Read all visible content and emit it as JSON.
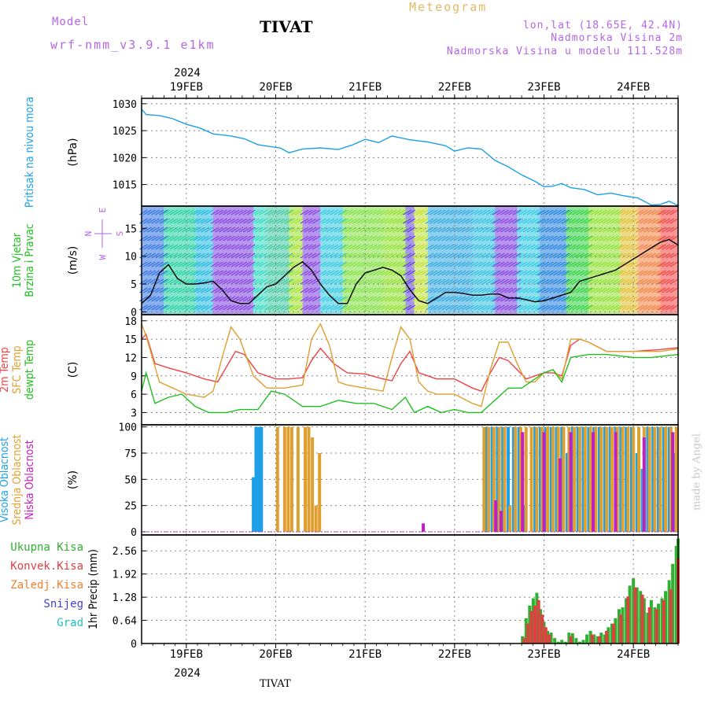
{
  "header": {
    "model_label": "Model",
    "model_name": "wrf-nmm_v3.9.1 e1km",
    "meteogram_label": "Meteogram",
    "station": "TIVAT",
    "coords": "lon,lat (18.65E, 42.4N)",
    "elevation": "Nadmorska Visina 2m",
    "model_elevation": "Nadmorska Visina u modelu 111.528m",
    "footer_station": "TIVAT",
    "watermark": "made by Angel"
  },
  "colors": {
    "pressure": "#1ea0e6",
    "temp2m": "#ee4444",
    "sfc": "#e0a030",
    "dewpt": "#20c020",
    "high_cloud": "#1ea0e6",
    "mid_cloud": "#e0a030",
    "low_cloud": "#c020c0",
    "total_precip": "#30b030",
    "conv_precip": "#e04040",
    "grid": "#888888"
  },
  "chart_data": {
    "type": "line",
    "x_axis": {
      "year": "2024",
      "dates": [
        "19FEB",
        "20FEB",
        "21FEB",
        "22FEB",
        "23FEB",
        "24FEB"
      ]
    },
    "panels": [
      {
        "id": "pressure",
        "type": "line",
        "ylabel_lines": [
          "Pritisak na nivou mora"
        ],
        "unit": "(hPa)",
        "yticks": [
          1015,
          1020,
          1025,
          1030
        ],
        "ylim": [
          1011,
          1031
        ],
        "series": [
          {
            "name": "Pritisak na nivou mora",
            "x": [
              18.5,
              18.55,
              18.7,
              18.85,
              19.0,
              19.15,
              19.3,
              19.5,
              19.65,
              19.8,
              19.95,
              20.05,
              20.15,
              20.3,
              20.5,
              20.7,
              20.85,
              21.0,
              21.15,
              21.3,
              21.5,
              21.7,
              21.9,
              22.0,
              22.15,
              22.3,
              22.45,
              22.6,
              22.75,
              22.9,
              23.0,
              23.1,
              23.2,
              23.3,
              23.45,
              23.6,
              23.75,
              23.9,
              24.05,
              24.2,
              24.3,
              24.4,
              24.5
            ],
            "values": [
              1029,
              1028,
              1027.8,
              1027.2,
              1026.2,
              1025.5,
              1024.4,
              1024,
              1023.5,
              1022.4,
              1022,
              1021.8,
              1020.9,
              1021.6,
              1021.8,
              1021.5,
              1022.3,
              1023.4,
              1022.8,
              1024,
              1023.3,
              1022.9,
              1022.2,
              1021.2,
              1021.8,
              1021.6,
              1019.5,
              1018.3,
              1016.8,
              1015.6,
              1014.6,
              1014.7,
              1015.2,
              1014.4,
              1014.1,
              1013.1,
              1013.4,
              1012.9,
              1012.5,
              1011.2,
              1011.3,
              1011.9,
              1011.1
            ]
          }
        ]
      },
      {
        "id": "wind",
        "type": "line",
        "ylabel_lines": [
          "10m Vjetar",
          "Brzina i Pravac"
        ],
        "unit": "(m/s)",
        "compass": {
          "n": "N",
          "s": "S",
          "w": "W",
          "e": "E"
        },
        "yticks": [
          0,
          5,
          10,
          15
        ],
        "ylim": [
          -0.5,
          19
        ],
        "series": [
          {
            "name": "Brzina",
            "x": [
              18.5,
              18.6,
              18.7,
              18.8,
              18.9,
              19.0,
              19.1,
              19.2,
              19.3,
              19.4,
              19.5,
              19.6,
              19.7,
              19.8,
              19.9,
              20.0,
              20.1,
              20.2,
              20.3,
              20.4,
              20.5,
              20.6,
              20.7,
              20.8,
              20.9,
              21.0,
              21.1,
              21.2,
              21.3,
              21.4,
              21.5,
              21.6,
              21.7,
              21.8,
              21.9,
              22.0,
              22.1,
              22.2,
              22.3,
              22.4,
              22.5,
              22.6,
              22.7,
              22.8,
              22.9,
              23.0,
              23.1,
              23.2,
              23.3,
              23.4,
              23.5,
              23.6,
              23.7,
              23.8,
              23.9,
              24.0,
              24.1,
              24.2,
              24.3,
              24.4,
              24.5
            ],
            "values": [
              1.5,
              3,
              7,
              8.5,
              6,
              5,
              5,
              5.2,
              5.5,
              4,
              2,
              1.5,
              1.5,
              3,
              4.5,
              5,
              6.5,
              8,
              9,
              7.5,
              5,
              3,
              1.5,
              1.5,
              5,
              7,
              7.5,
              8,
              7.5,
              6.5,
              4,
              2,
              1.5,
              2.5,
              3.5,
              3.5,
              3.3,
              3,
              3,
              3.2,
              3.2,
              2.5,
              2.5,
              2.2,
              1.8,
              2,
              2.5,
              3,
              3.5,
              5.5,
              6,
              6.5,
              7,
              7.5,
              8.5,
              9.5,
              10.5,
              11.5,
              12.5,
              13,
              12
            ]
          }
        ]
      },
      {
        "id": "temperature",
        "type": "line",
        "ylabel_lines": [
          "2m Temp",
          "SFC Temp",
          "dewpt Temp"
        ],
        "unit": "(C)",
        "yticks": [
          3,
          6,
          9,
          12,
          15,
          18
        ],
        "ylim": [
          1,
          19
        ],
        "series": [
          {
            "name": "2m Temp",
            "x": [
              18.5,
              18.55,
              18.65,
              18.8,
              19.0,
              19.2,
              19.35,
              19.45,
              19.55,
              19.65,
              19.8,
              20.0,
              20.15,
              20.3,
              20.4,
              20.5,
              20.65,
              20.8,
              21.0,
              21.2,
              21.3,
              21.4,
              21.5,
              21.6,
              21.8,
              22.0,
              22.2,
              22.3,
              22.4,
              22.5,
              22.6,
              22.7,
              22.8,
              22.9,
              23.0,
              23.1,
              23.2,
              23.3,
              23.4,
              23.5,
              23.7,
              24.0,
              24.3,
              24.5
            ],
            "values": [
              15,
              15.8,
              11,
              10.3,
              9.5,
              8.5,
              8,
              10.5,
              13,
              12.5,
              9.5,
              8.5,
              8.5,
              8.7,
              11.5,
              13.5,
              11,
              9.5,
              9.3,
              8.5,
              8.2,
              11,
              13,
              9.5,
              8.5,
              8.5,
              7,
              6.5,
              9.5,
              12,
              11.5,
              10,
              8.5,
              9,
              9.5,
              9.5,
              9,
              14,
              15,
              14.5,
              13,
              13,
              13.3,
              13.6
            ]
          },
          {
            "name": "SFC Temp",
            "x": [
              18.5,
              18.55,
              18.7,
              18.85,
              19.0,
              19.2,
              19.3,
              19.4,
              19.5,
              19.6,
              19.75,
              19.9,
              20.1,
              20.3,
              20.4,
              20.5,
              20.6,
              20.7,
              20.8,
              21.0,
              21.2,
              21.3,
              21.4,
              21.5,
              21.6,
              21.7,
              21.8,
              22.0,
              22.2,
              22.3,
              22.4,
              22.5,
              22.6,
              22.7,
              22.8,
              22.9,
              23.0,
              23.1,
              23.2,
              23.3,
              23.4,
              23.5,
              23.7,
              24.0,
              24.3,
              24.5
            ],
            "values": [
              17.5,
              15.5,
              8,
              7,
              6,
              5.5,
              6.5,
              12,
              17,
              15,
              9,
              7,
              7,
              7.5,
              15,
              17.5,
              14,
              8,
              7.5,
              7,
              6.5,
              12,
              17,
              15,
              8,
              6.5,
              6,
              6,
              4.5,
              4,
              10,
              14.5,
              14.5,
              11,
              8,
              8,
              9.5,
              10,
              8.5,
              15,
              15,
              14.5,
              13,
              13,
              13,
              13.4
            ]
          },
          {
            "name": "dewpt Temp",
            "x": [
              18.5,
              18.55,
              18.65,
              18.8,
              18.95,
              19.1,
              19.25,
              19.45,
              19.6,
              19.8,
              19.95,
              20.1,
              20.3,
              20.5,
              20.7,
              20.9,
              21.1,
              21.3,
              21.45,
              21.55,
              21.7,
              21.85,
              22.0,
              22.15,
              22.3,
              22.45,
              22.6,
              22.75,
              22.9,
              23.0,
              23.1,
              23.2,
              23.3,
              23.5,
              23.7,
              24.0,
              24.2,
              24.5
            ],
            "values": [
              6.5,
              9.5,
              4.5,
              5.5,
              6,
              4,
              3,
              3,
              3.5,
              3.5,
              6.5,
              6,
              4,
              4,
              5,
              4.5,
              4.5,
              3.5,
              5.5,
              3,
              4,
              3,
              3.5,
              3,
              3,
              5,
              7,
              7,
              8.5,
              9.5,
              10,
              8,
              12,
              12.5,
              12.5,
              12,
              12,
              12.5
            ]
          }
        ]
      },
      {
        "id": "cloud",
        "type": "bar",
        "ylabel_lines": [
          "Visoka Oblacnost",
          "Srednja Oblacnost",
          "Niska Oblacnost"
        ],
        "unit": "(%)",
        "yticks": [
          0,
          25,
          50,
          75,
          100
        ],
        "ylim": [
          -3,
          102
        ],
        "series": [
          {
            "name": "Visoka Oblacnost",
            "x": [
              19.75,
              19.78,
              19.81,
              19.84,
              22.36,
              22.42,
              22.48,
              22.54,
              22.6,
              22.66,
              22.72,
              22.78,
              22.84,
              22.9,
              22.96,
              23.02,
              23.08,
              23.14,
              23.2,
              23.26,
              23.32,
              23.38,
              23.44,
              23.5,
              23.56,
              23.62,
              23.68,
              23.74,
              23.8,
              23.86,
              23.92,
              23.98,
              24.04,
              24.1,
              24.16,
              24.22,
              24.28,
              24.34,
              24.4,
              24.46
            ],
            "values": [
              52,
              100,
              100,
              100,
              100,
              100,
              100,
              100,
              100,
              100,
              100,
              25,
              0,
              100,
              100,
              100,
              100,
              100,
              100,
              75,
              100,
              100,
              100,
              100,
              100,
              100,
              100,
              100,
              100,
              100,
              100,
              100,
              75,
              60,
              100,
              100,
              100,
              100,
              100,
              75
            ]
          },
          {
            "name": "Srednja Oblacnost",
            "x": [
              20.02,
              20.1,
              20.14,
              20.18,
              20.25,
              20.33,
              20.37,
              20.41,
              20.45,
              20.49,
              22.33,
              22.38,
              22.44,
              22.5,
              22.56,
              22.62,
              22.68,
              22.74,
              22.8,
              22.86,
              22.92,
              22.98,
              23.04,
              23.1,
              23.16,
              23.22,
              23.28,
              23.34,
              23.4,
              23.46,
              23.52,
              23.58,
              23.64,
              23.7,
              23.76,
              23.82,
              23.88,
              23.94,
              24.0,
              24.06,
              24.12,
              24.18,
              24.24,
              24.3,
              24.36,
              24.42,
              24.48
            ],
            "values": [
              100,
              100,
              100,
              100,
              100,
              100,
              100,
              90,
              25,
              75,
              100,
              100,
              100,
              100,
              100,
              25,
              100,
              100,
              100,
              100,
              100,
              100,
              100,
              100,
              100,
              100,
              100,
              100,
              100,
              100,
              100,
              100,
              100,
              100,
              100,
              100,
              100,
              100,
              100,
              100,
              100,
              100,
              100,
              100,
              100,
              100,
              100
            ]
          },
          {
            "name": "Niska Oblacnost",
            "x": [
              21.65,
              22.46,
              22.52,
              22.76,
              23.0,
              23.18,
              23.3,
              23.55,
              23.8,
              24.12,
              24.44
            ],
            "values": [
              8,
              30,
              20,
              95,
              95,
              70,
              95,
              95,
              95,
              90,
              95
            ]
          }
        ]
      },
      {
        "id": "precip",
        "type": "bar",
        "ylabel_lines": [
          "1hr Precip (mm)"
        ],
        "unit": "",
        "legend_lines": [
          "Ukupna Kisa",
          "Konvek.Kisa",
          "Zaledj.Kisa",
          "Snijeg",
          "Grad"
        ],
        "yticks": [
          0,
          0.64,
          1.28,
          1.92,
          2.56
        ],
        "ylim": [
          0,
          3.0
        ],
        "series": [
          {
            "name": "Ukupna Kisa",
            "x": [
              22.76,
              22.8,
              22.84,
              22.88,
              22.92,
              22.96,
              23.0,
              23.04,
              23.08,
              23.12,
              23.16,
              23.2,
              23.24,
              23.28,
              23.32,
              23.36,
              23.4,
              23.44,
              23.48,
              23.52,
              23.56,
              23.6,
              23.64,
              23.68,
              23.72,
              23.76,
              23.8,
              23.84,
              23.88,
              23.92,
              23.96,
              24.0,
              24.04,
              24.08,
              24.12,
              24.16,
              24.2,
              24.24,
              24.28,
              24.32,
              24.36,
              24.4,
              24.44,
              24.48,
              24.5
            ],
            "values": [
              0.2,
              0.7,
              1.05,
              1.25,
              1.4,
              0.95,
              0.6,
              0.35,
              0.3,
              0.15,
              0.05,
              0.1,
              0.05,
              0.3,
              0.28,
              0.15,
              0.05,
              0.1,
              0.25,
              0.35,
              0.25,
              0.2,
              0.3,
              0.25,
              0.45,
              0.55,
              0.7,
              0.95,
              1.0,
              1.25,
              1.6,
              1.8,
              1.55,
              1.45,
              1.25,
              0.85,
              1.2,
              1.0,
              1.1,
              1.25,
              1.45,
              1.75,
              2.2,
              2.7,
              2.9
            ]
          },
          {
            "name": "Konvek.Kisa",
            "x": [
              22.78,
              22.82,
              22.86,
              22.9,
              22.94,
              22.98,
              23.02,
              23.06,
              23.3,
              23.54,
              23.62,
              23.7,
              23.78,
              23.86,
              23.94,
              24.02,
              24.1,
              24.18,
              24.26,
              24.34,
              24.42,
              24.5
            ],
            "values": [
              0.15,
              0.55,
              0.9,
              1.05,
              1.2,
              0.8,
              0.45,
              0.25,
              0.2,
              0.25,
              0.2,
              0.35,
              0.55,
              0.8,
              1.3,
              1.55,
              1.35,
              1.0,
              0.95,
              1.2,
              1.5,
              2.35
            ]
          }
        ]
      }
    ]
  }
}
